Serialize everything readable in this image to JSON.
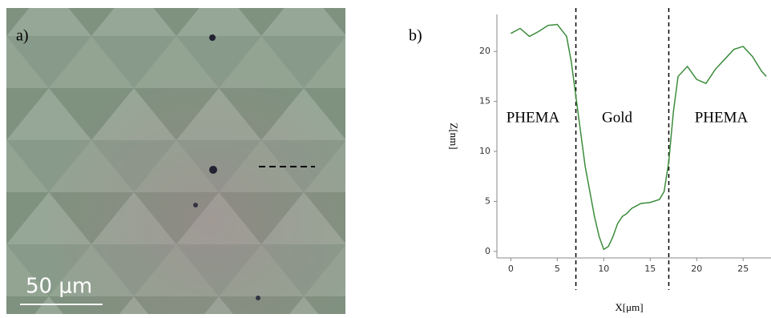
{
  "figure": {
    "panel_a": {
      "label": "a)",
      "scale_bar": "50 μm"
    }
  },
  "chart_data": {
    "type": "line",
    "label": "b)",
    "x_label": "X[μm]",
    "y_label": "Z[nm]",
    "annotations": [
      "PHEMA",
      "Gold",
      "PHEMA"
    ],
    "vlines": [
      7,
      17
    ],
    "xlim": [
      -1.5,
      28
    ],
    "ylim": [
      -0.65,
      23.7
    ],
    "xticks": [
      0,
      5,
      10,
      15,
      20,
      25
    ],
    "yticks": [
      0,
      5,
      10,
      15,
      20
    ],
    "x": [
      0,
      1,
      2,
      3,
      4,
      5,
      6,
      6.5,
      7,
      7.5,
      8,
      8.5,
      9,
      9.5,
      10,
      10.5,
      11,
      11.5,
      12,
      12.5,
      13,
      14,
      15,
      16,
      16.5,
      17,
      17.5,
      18,
      19,
      20,
      21,
      22,
      23,
      24,
      25,
      26,
      27,
      27.5
    ],
    "series": [
      {
        "color": "#3c8c3c",
        "values": [
          21.8,
          22.3,
          21.5,
          22,
          22.6,
          22.7,
          21.5,
          19,
          15.5,
          12,
          8.5,
          6,
          3.5,
          1.5,
          0.2,
          0.5,
          1.5,
          2.8,
          3.5,
          3.8,
          4.3,
          4.8,
          4.9,
          5.2,
          6,
          9,
          14,
          17.5,
          18.5,
          17.2,
          16.8,
          18.2,
          19.2,
          20.2,
          20.5,
          19.5,
          18,
          17.5
        ]
      }
    ]
  }
}
